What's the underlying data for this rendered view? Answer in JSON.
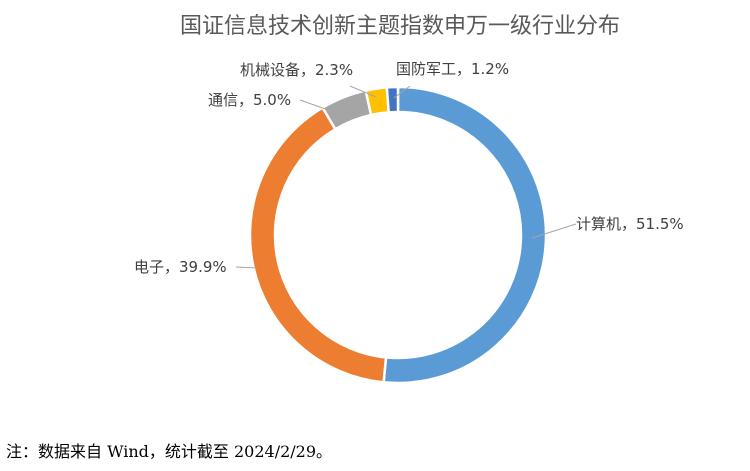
{
  "chart_data": {
    "type": "pie",
    "variant": "donut",
    "title": "国证信息技术创新主题指数申万一级行业分布",
    "slices": [
      {
        "label": "计算机",
        "value": 51.5,
        "display": "计算机，51.5%",
        "color": "#5b9bd5"
      },
      {
        "label": "电子",
        "value": 39.9,
        "display": "电子，39.9%",
        "color": "#ed7d31"
      },
      {
        "label": "通信",
        "value": 5.0,
        "display": "通信，5.0%",
        "color": "#a5a5a5"
      },
      {
        "label": "机械设备",
        "value": 2.3,
        "display": "机械设备，2.3%",
        "color": "#ffc000"
      },
      {
        "label": "国防军工",
        "value": 1.2,
        "display": "国防军工，1.2%",
        "color": "#4472c4"
      }
    ],
    "legend": "none"
  },
  "footnote": "注：数据来自 Wind，统计截至 2024/2/29。"
}
